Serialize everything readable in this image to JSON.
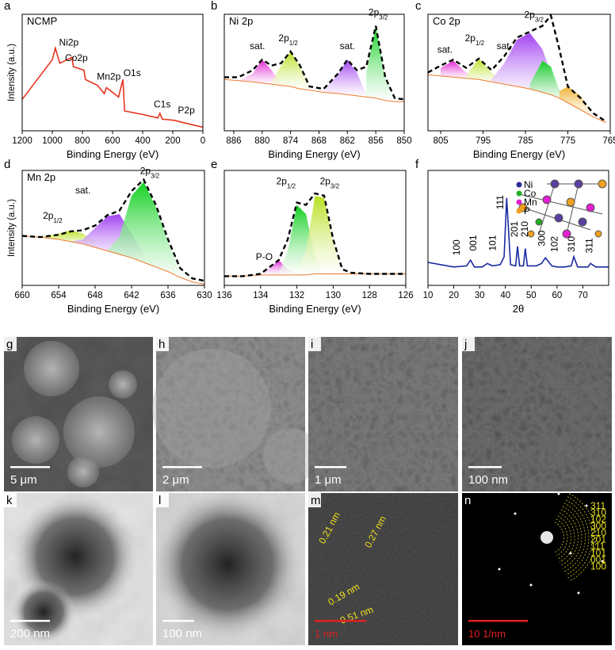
{
  "chart_data": [
    {
      "type": "line",
      "panel": "a",
      "title": "NCMP",
      "xlabel": "Binding Energy (eV)",
      "ylabel": "Intensity (a.u.)",
      "xlim": [
        1200,
        0
      ],
      "xticks": [
        1200,
        1000,
        800,
        600,
        400,
        200,
        0
      ],
      "ylim": [
        0,
        100
      ],
      "x": [
        1200,
        1100,
        1000,
        980,
        950,
        870,
        860,
        790,
        780,
        700,
        655,
        640,
        560,
        531,
        520,
        400,
        300,
        285,
        270,
        190,
        130,
        0
      ],
      "series": [
        {
          "color": "#e8321e",
          "values": [
            27,
            44,
            61,
            71,
            58,
            63,
            55,
            52,
            44,
            39,
            32,
            37,
            29,
            44,
            17,
            14,
            11,
            15,
            10,
            9,
            7,
            3
          ]
        }
      ],
      "annotations": [
        {
          "text": "Ni2p",
          "x": 890,
          "y": 73
        },
        {
          "text": "Co2p",
          "x": 840,
          "y": 60
        },
        {
          "text": "Mn2p",
          "x": 625,
          "y": 44
        },
        {
          "text": "O1s",
          "x": 470,
          "y": 47
        },
        {
          "text": "C1s",
          "x": 270,
          "y": 20
        },
        {
          "text": "P2p",
          "x": 110,
          "y": 15
        }
      ]
    },
    {
      "type": "area",
      "panel": "b",
      "title": "Ni 2p",
      "xlabel": "Binding Energy (eV)",
      "xlim": [
        888,
        850
      ],
      "xticks": [
        886,
        880,
        874,
        868,
        862,
        856,
        850
      ],
      "ylim": [
        0,
        100
      ],
      "x": [
        888,
        885,
        882,
        880,
        878,
        876,
        874,
        872,
        870,
        867,
        864,
        862,
        860,
        858,
        856,
        854,
        852,
        850
      ],
      "series": [
        {
          "color": "#000000",
          "linestyle": "dashed",
          "values": [
            46,
            46,
            52,
            61,
            56,
            58,
            68,
            56,
            38,
            36,
            49,
            61,
            52,
            55,
            90,
            46,
            28,
            27
          ]
        },
        {
          "color": "#f07a2a",
          "values": [
            44,
            43,
            42,
            41,
            40,
            39,
            38,
            36,
            35,
            33,
            32,
            31,
            30,
            29,
            28,
            26,
            25,
            25
          ]
        },
        {
          "color": "#e020d0",
          "values": [
            null,
            43,
            49,
            61,
            52,
            40,
            null,
            null,
            null,
            null,
            null,
            null,
            null,
            null,
            null,
            null,
            null,
            null
          ]
        },
        {
          "color": "#b8e020",
          "values": [
            null,
            null,
            null,
            null,
            42,
            56,
            68,
            55,
            37,
            null,
            null,
            null,
            null,
            null,
            null,
            null,
            null,
            null
          ]
        },
        {
          "color": "#a040f0",
          "values": [
            null,
            null,
            null,
            null,
            null,
            null,
            null,
            null,
            null,
            35,
            48,
            61,
            50,
            31,
            null,
            null,
            null,
            null
          ]
        },
        {
          "color": "#10d020",
          "values": [
            null,
            null,
            null,
            null,
            null,
            null,
            null,
            null,
            null,
            null,
            null,
            null,
            null,
            50,
            90,
            45,
            26,
            null
          ]
        }
      ],
      "annotations": [
        {
          "text": "sat.",
          "x": 881,
          "y": 70
        },
        {
          "text": "2p",
          "sub": "1/2",
          "x": 874.5,
          "y": 77
        },
        {
          "text": "sat.",
          "x": 862,
          "y": 70
        },
        {
          "text": "2p",
          "sub": "3/2",
          "x": 855.5,
          "y": 99
        }
      ]
    },
    {
      "type": "area",
      "panel": "c",
      "title": "Co 2p",
      "xlabel": "Binding Energy (eV)",
      "xlim": [
        808,
        765
      ],
      "xticks": [
        805,
        795,
        785,
        775,
        765
      ],
      "ylim": [
        0,
        100
      ],
      "x": [
        808,
        805,
        802,
        799,
        796,
        793,
        790,
        787,
        784,
        781,
        779,
        777,
        775,
        772,
        769,
        766
      ],
      "series": [
        {
          "color": "#000000",
          "linestyle": "dashed",
          "values": [
            50,
            56,
            61,
            54,
            62,
            52,
            64,
            80,
            85,
            90,
            99,
            70,
            38,
            28,
            15,
            8
          ]
        },
        {
          "color": "#f07a2a",
          "values": [
            48,
            47,
            46,
            45,
            44,
            42,
            40,
            38,
            36,
            33,
            31,
            28,
            24,
            18,
            12,
            7
          ]
        },
        {
          "color": "#e020d0",
          "values": [
            null,
            54,
            60,
            50,
            44,
            null,
            null,
            null,
            null,
            null,
            null,
            null,
            null,
            null,
            null,
            null
          ]
        },
        {
          "color": "#b8e020",
          "values": [
            null,
            null,
            null,
            47,
            62,
            50,
            41,
            null,
            null,
            null,
            null,
            null,
            null,
            null,
            null,
            null
          ]
        },
        {
          "color": "#a040f0",
          "values": [
            null,
            null,
            null,
            null,
            null,
            44,
            58,
            78,
            84,
            70,
            50,
            32,
            null,
            null,
            null,
            null
          ]
        },
        {
          "color": "#10d020",
          "values": [
            null,
            null,
            null,
            null,
            null,
            null,
            null,
            null,
            40,
            60,
            55,
            35,
            24,
            null,
            null,
            null
          ]
        },
        {
          "color": "#f0b030",
          "values": [
            null,
            null,
            null,
            null,
            null,
            null,
            null,
            null,
            null,
            null,
            null,
            34,
            38,
            30,
            14,
            null
          ]
        }
      ],
      "annotations": [
        {
          "text": "sat.",
          "x": 804,
          "y": 67
        },
        {
          "text": "2p",
          "sub": "1/2",
          "x": 797,
          "y": 77
        },
        {
          "text": "sat.",
          "x": 790,
          "y": 70
        },
        {
          "text": "2p",
          "sub": "3/2",
          "x": 783,
          "y": 97
        }
      ]
    },
    {
      "type": "area",
      "panel": "d",
      "title": "Mn 2p",
      "xlabel": "Binding Energy (eV)",
      "ylabel": "Intensity (a.u.)",
      "xlim": [
        660,
        630
      ],
      "xticks": [
        660,
        654,
        648,
        642,
        636,
        630
      ],
      "ylim": [
        0,
        100
      ],
      "x": [
        660,
        657,
        654,
        652,
        650,
        648,
        646,
        644,
        642,
        640,
        638,
        636,
        634,
        632,
        630
      ],
      "series": [
        {
          "color": "#000000",
          "linestyle": "dashed",
          "values": [
            43,
            42,
            44,
            47,
            48,
            52,
            61,
            65,
            82,
            92,
            70,
            40,
            15,
            6,
            4
          ]
        },
        {
          "color": "#f07a2a",
          "values": [
            43,
            42,
            40,
            38,
            36,
            33,
            30,
            27,
            24,
            20,
            16,
            12,
            7,
            3,
            1
          ]
        },
        {
          "color": "#b8e020",
          "values": [
            null,
            42,
            45,
            48,
            45,
            38,
            null,
            null,
            null,
            null,
            null,
            null,
            null,
            null,
            null
          ]
        },
        {
          "color": "#a040f0",
          "values": [
            null,
            null,
            null,
            38,
            40,
            50,
            60,
            62,
            45,
            27,
            null,
            null,
            null,
            null,
            null
          ]
        },
        {
          "color": "#10d020",
          "values": [
            null,
            null,
            null,
            null,
            null,
            null,
            30,
            42,
            78,
            90,
            68,
            38,
            12,
            3,
            null
          ]
        }
      ],
      "annotations": [
        {
          "text": "2p",
          "sub": "1/2",
          "x": 655,
          "y": 58
        },
        {
          "text": "sat.",
          "x": 650,
          "y": 80
        },
        {
          "text": "2p",
          "sub": "3/2",
          "x": 639,
          "y": 97
        }
      ]
    },
    {
      "type": "area",
      "panel": "e",
      "xlabel": "Binding Energy (eV)",
      "xlim": [
        136,
        126
      ],
      "xticks": [
        136,
        134,
        132,
        130,
        128,
        126
      ],
      "ylim": [
        0,
        100
      ],
      "x": [
        136,
        135,
        134,
        133.5,
        133,
        132.5,
        132,
        131.5,
        131,
        130.5,
        130,
        129.5,
        129,
        128,
        127,
        126
      ],
      "series": [
        {
          "color": "#000000",
          "linestyle": "dashed",
          "values": [
            8,
            8,
            10,
            16,
            22,
            40,
            72,
            70,
            80,
            78,
            40,
            14,
            11,
            10,
            10,
            10
          ]
        },
        {
          "color": "#f07a2a",
          "values": [
            8,
            8,
            9,
            9,
            9,
            9,
            9,
            9,
            10,
            10,
            10,
            10,
            10,
            10,
            10,
            10
          ]
        },
        {
          "color": "#e020d0",
          "values": [
            null,
            null,
            9,
            15,
            22,
            14,
            9,
            null,
            null,
            null,
            null,
            null,
            null,
            null,
            null,
            null
          ]
        },
        {
          "color": "#10d020",
          "values": [
            null,
            null,
            null,
            null,
            10,
            30,
            70,
            62,
            25,
            11,
            null,
            null,
            null,
            null,
            null,
            null
          ]
        },
        {
          "color": "#b8e020",
          "values": [
            null,
            null,
            null,
            null,
            null,
            null,
            12,
            30,
            78,
            76,
            38,
            12,
            null,
            null,
            null,
            null
          ]
        }
      ],
      "annotations": [
        {
          "text": "2p",
          "sub": "1/2",
          "x": 132.6,
          "y": 88
        },
        {
          "text": "2p",
          "sub": "3/2",
          "x": 130.2,
          "y": 88
        },
        {
          "text": "P-O",
          "x": 133.8,
          "y": 22
        }
      ]
    },
    {
      "type": "line",
      "panel": "f",
      "xlabel": "2θ",
      "vertical_labels": true,
      "xlim": [
        10,
        80
      ],
      "xticks": [
        10,
        20,
        30,
        40,
        50,
        60,
        70
      ],
      "ylim": [
        0,
        100
      ],
      "x": [
        10,
        15,
        20,
        25,
        26.5,
        28,
        31,
        33,
        35,
        38,
        39.5,
        40.5,
        42,
        44,
        44.7,
        45.5,
        47,
        47.7,
        48.5,
        52,
        54,
        55.5,
        58,
        60,
        63,
        65.5,
        66.5,
        68,
        72,
        73,
        75,
        80
      ],
      "series": [
        {
          "color": "#1a2aa0",
          "values": [
            20,
            18,
            16,
            17,
            22,
            16,
            16,
            19,
            17,
            18,
            25,
            76,
            18,
            17,
            34,
            17,
            17,
            32,
            17,
            17,
            19,
            24,
            17,
            16,
            16,
            17,
            25,
            16,
            16,
            19,
            16,
            16
          ]
        }
      ],
      "annotations": [
        {
          "text": "100",
          "x": 21,
          "y": 26
        },
        {
          "text": "001",
          "x": 27.5,
          "y": 30
        },
        {
          "text": "101",
          "x": 35,
          "y": 30
        },
        {
          "text": "111",
          "x": 38,
          "y": 66
        },
        {
          "text": "201",
          "x": 43.5,
          "y": 42
        },
        {
          "text": "210",
          "x": 47.5,
          "y": 42
        },
        {
          "text": "300",
          "x": 54,
          "y": 34
        },
        {
          "text": "102",
          "x": 59,
          "y": 29
        },
        {
          "text": "310",
          "x": 65.5,
          "y": 29
        },
        {
          "text": "311",
          "x": 72.5,
          "y": 28
        }
      ],
      "legend": [
        {
          "name": "Ni",
          "color": "#2a2a9a"
        },
        {
          "name": "Co",
          "color": "#20b020"
        },
        {
          "name": "Mn",
          "color": "#e020d0"
        },
        {
          "name": "P",
          "color": "#f0a020"
        }
      ]
    }
  ],
  "images": [
    {
      "panel": "g",
      "scale_bar": "5 μm"
    },
    {
      "panel": "h",
      "scale_bar": "2 μm"
    },
    {
      "panel": "i",
      "scale_bar": "1 μm"
    },
    {
      "panel": "j",
      "scale_bar": "100 nm"
    },
    {
      "panel": "k",
      "scale_bar": "200 nm"
    },
    {
      "panel": "l",
      "scale_bar": "100 nm"
    },
    {
      "panel": "m",
      "scale_bar": "1 nm",
      "labels": [
        "0.21 nm",
        "0.27 nm",
        "0.19 nm",
        "0.51 nm"
      ]
    },
    {
      "panel": "n",
      "scale_bar": "10 1/nm",
      "labels": [
        "311",
        "310",
        "102",
        "300",
        "210",
        "201",
        "111",
        "101",
        "001",
        "100"
      ]
    }
  ]
}
